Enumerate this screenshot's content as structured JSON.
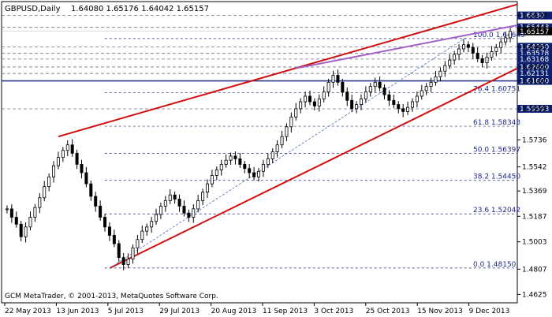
{
  "header": {
    "symbol": "GBPUSD,Daily",
    "ohlc": "1.64080 1.65176 1.64042 1.65157"
  },
  "footer": {
    "copyright": "GCM MetaTrader, © 2001-2013, MetaQuotes Software Corp."
  },
  "chart_data": {
    "type": "candlestick",
    "ylim": [
      1.4565,
      1.673
    ],
    "y_ticks": [
      1.663,
      1.6544,
      1.6405,
      1.626,
      1.616,
      1.5959,
      1.5736,
      1.5542,
      1.5369,
      1.5187,
      1.5003,
      1.4807,
      1.4625
    ],
    "y_tick_labels": [
      "1.6630",
      "1.6544",
      "1.6405",
      "1.6260",
      "1.6160",
      "1.5959",
      "1.5736",
      "1.5542",
      "1.5369",
      "1.5187",
      "1.5003",
      "1.4807",
      "1.4625"
    ],
    "x_labels": [
      "22 May 2013",
      "13 Jun 2013",
      "5 Jul 2013",
      "29 Jul 2013",
      "20 Aug 2013",
      "11 Sep 2013",
      "3 Oct 2013",
      "25 Oct 2013",
      "15 Nov 2013",
      "9 Dec 2013"
    ],
    "grid": true,
    "price_levels": [
      {
        "value": 1.663,
        "label": "1.6630"
      },
      {
        "value": 1.65448,
        "label": "1.65448"
      },
      {
        "value": 1.6405,
        "label": "1.64050"
      },
      {
        "value": 1.63578,
        "label": "1.63578"
      },
      {
        "value": 1.63168,
        "label": "1.63168"
      },
      {
        "value": 1.626,
        "label": "1.62600"
      },
      {
        "value": 1.62131,
        "label": "1.62131"
      },
      {
        "value": 1.616,
        "label": "1.61600"
      },
      {
        "value": 1.59593,
        "label": "1.59593"
      }
    ],
    "current_price": {
      "value": 1.6516,
      "label": "1.65157"
    },
    "fibonacci": {
      "levels": [
        {
          "pct": "100.0",
          "value": 1.64643
        },
        {
          "pct": "76.4",
          "value": 1.60751
        },
        {
          "pct": "61.8",
          "value": 1.58343
        },
        {
          "pct": "50.0",
          "value": 1.56397
        },
        {
          "pct": "38.2",
          "value": 1.5445
        },
        {
          "pct": "23.6",
          "value": 1.52042
        },
        {
          "pct": "0.0",
          "value": 1.4815
        }
      ],
      "labels": [
        "100.0 1.64643",
        "76.4 1.60751",
        "61.8 1.58343",
        "50.0 1.56397",
        "38.2 1.54450",
        "23.6 1.52042",
        "0.0 1.48150"
      ]
    },
    "channel": {
      "upper": [
        [
          1.576,
          0
        ],
        [
          1.671,
          1
        ]
      ],
      "lower": [
        [
          1.4815,
          0
        ],
        [
          1.625,
          1
        ]
      ],
      "purple": [
        [
          1.625,
          0
        ],
        [
          1.656,
          1
        ]
      ]
    },
    "trend_dashed": [
      [
        1.4815,
        0
      ],
      [
        1.647,
        1
      ]
    ],
    "series": [
      {
        "values": [
          1.524,
          1.518,
          1.513,
          1.504,
          1.511,
          1.518,
          1.525,
          1.532,
          1.54,
          1.547,
          1.555,
          1.561,
          1.566,
          1.57,
          1.564,
          1.556,
          1.55,
          1.542,
          1.533,
          1.526,
          1.518,
          1.511,
          1.505,
          1.499,
          1.489,
          1.484,
          1.488,
          1.496,
          1.502,
          1.508,
          1.511,
          1.515,
          1.52,
          1.526,
          1.53,
          1.534,
          1.531,
          1.526,
          1.521,
          1.518,
          1.524,
          1.53,
          1.536,
          1.542,
          1.548,
          1.552,
          1.556,
          1.559,
          1.562,
          1.56,
          1.556,
          1.553,
          1.55,
          1.547,
          1.551,
          1.556,
          1.56,
          1.565,
          1.57,
          1.576,
          1.583,
          1.59,
          1.596,
          1.601,
          1.605,
          1.601,
          1.598,
          1.603,
          1.608,
          1.615,
          1.62,
          1.615,
          1.608,
          1.602,
          1.596,
          1.599,
          1.603,
          1.608,
          1.612,
          1.615,
          1.611,
          1.606,
          1.602,
          1.599,
          1.596,
          1.594,
          1.597,
          1.601,
          1.605,
          1.609,
          1.612,
          1.615,
          1.619,
          1.623,
          1.627,
          1.631,
          1.635,
          1.639,
          1.642,
          1.64,
          1.636,
          1.632,
          1.629,
          1.633,
          1.637,
          1.64,
          1.644,
          1.647,
          1.6516
        ]
      }
    ]
  }
}
